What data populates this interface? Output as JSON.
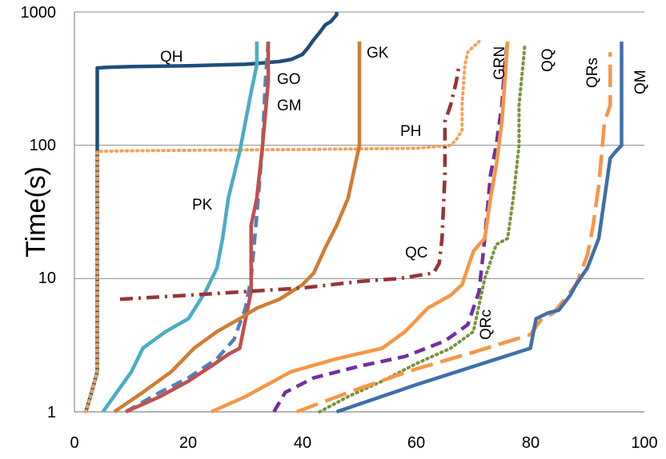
{
  "chart_data": {
    "type": "line",
    "title": "",
    "xlabel": "",
    "ylabel": "Time(s)",
    "xlim": [
      0,
      100
    ],
    "ylim": [
      1,
      1000
    ],
    "yscale": "log",
    "grid": "horizontal",
    "x_ticks": [
      "0",
      "20",
      "40",
      "60",
      "80",
      "100"
    ],
    "y_ticks": [
      "1",
      "10",
      "100",
      "1000"
    ],
    "series": [
      {
        "name": "QH",
        "color": "#1f4e79",
        "style": "solid",
        "x": [
          2,
          3,
          4,
          4,
          4,
          6,
          10,
          20,
          30,
          33,
          36,
          38,
          40,
          41,
          42,
          43,
          44,
          45,
          46,
          46
        ],
        "y": [
          1,
          1.4,
          2,
          100,
          380,
          385,
          390,
          395,
          405,
          415,
          425,
          440,
          480,
          540,
          620,
          700,
          800,
          850,
          950,
          1000
        ]
      },
      {
        "name": "PH",
        "color": "#f4a259",
        "style": "dotted",
        "x": [
          2,
          3,
          4,
          4,
          4,
          10,
          40,
          60,
          66,
          67,
          68,
          68,
          68.5,
          69,
          70,
          71
        ],
        "y": [
          1,
          1.4,
          2,
          8,
          90,
          91,
          93,
          95,
          100,
          110,
          130,
          200,
          400,
          500,
          550,
          600
        ]
      },
      {
        "name": "PK",
        "color": "#4bacc6",
        "style": "solid",
        "x": [
          5,
          10,
          12,
          16,
          20,
          23,
          25,
          26,
          27,
          28,
          29,
          30,
          31,
          32,
          32
        ],
        "y": [
          1,
          2,
          3,
          4,
          5,
          8,
          12,
          20,
          40,
          60,
          90,
          150,
          250,
          400,
          600
        ]
      },
      {
        "name": "GM",
        "color": "#4f81bd",
        "style": "dashed",
        "x": [
          9,
          15,
          20,
          25,
          28,
          30,
          31,
          32,
          33,
          33.5,
          34
        ],
        "y": [
          1,
          1.4,
          1.8,
          2.5,
          3.5,
          6,
          10,
          30,
          100,
          300,
          600
        ]
      },
      {
        "name": "GO",
        "color": "#c0504d",
        "style": "solid",
        "x": [
          9,
          15,
          20,
          24,
          27,
          29,
          31,
          31,
          32,
          33,
          34,
          34
        ],
        "y": [
          1,
          1.3,
          1.7,
          2.2,
          2.7,
          3,
          8,
          25,
          40,
          100,
          300,
          600
        ]
      },
      {
        "name": "GK",
        "color": "#d07c34",
        "style": "solid",
        "x": [
          7,
          12,
          17,
          21,
          25,
          29,
          32,
          36,
          40,
          42,
          44,
          46,
          48,
          50,
          50
        ],
        "y": [
          1,
          1.4,
          2,
          3,
          4,
          5,
          6,
          7,
          9,
          11,
          17,
          25,
          40,
          100,
          600
        ]
      },
      {
        "name": "QC",
        "color": "#993333",
        "style": "dashdot",
        "x": [
          8,
          20,
          40,
          50,
          57,
          60,
          63,
          64,
          64.5,
          65,
          65,
          66,
          67,
          67.5
        ],
        "y": [
          7,
          7.5,
          8.5,
          9.5,
          10,
          10.5,
          11,
          13,
          20,
          60,
          150,
          200,
          300,
          400
        ]
      },
      {
        "name": "GRN",
        "color": "#7030a0",
        "style": "dashed",
        "x": [
          35,
          37,
          42,
          50,
          58,
          65,
          69,
          71,
          72,
          73,
          74,
          75,
          75.5,
          76
        ],
        "y": [
          1,
          1.4,
          1.8,
          2.2,
          2.6,
          3.4,
          4.5,
          8,
          20,
          60,
          100,
          200,
          400,
          600
        ]
      },
      {
        "name": "QQ",
        "color": "#77933c",
        "style": "dotted",
        "x": [
          43,
          48,
          54,
          60,
          66,
          70,
          72,
          74,
          76,
          77,
          78,
          78,
          79
        ],
        "y": [
          1,
          1.3,
          1.7,
          2.3,
          3,
          4,
          10,
          18,
          20,
          40,
          100,
          200,
          550
        ]
      },
      {
        "name": "QRc",
        "color": "#f79646",
        "style": "solid",
        "x": [
          24,
          30,
          38,
          46,
          54,
          58,
          62,
          66,
          68,
          69,
          70,
          71,
          72,
          73,
          74,
          75,
          75.5,
          76
        ],
        "y": [
          1,
          1.3,
          2,
          2.5,
          3,
          4,
          6,
          7.5,
          9,
          12,
          16,
          18,
          20,
          40,
          70,
          150,
          300,
          600
        ]
      },
      {
        "name": "QRs",
        "color": "#f79646",
        "style": "longdash",
        "x": [
          39,
          50,
          60,
          70,
          80,
          82,
          84,
          86,
          88,
          90,
          91,
          92,
          93,
          94,
          94
        ],
        "y": [
          1,
          1.5,
          2.1,
          2.8,
          3.8,
          5,
          5.5,
          7,
          9,
          15,
          25,
          50,
          150,
          200,
          500
        ]
      },
      {
        "name": "QM",
        "color": "#3f6fa8",
        "style": "solid",
        "x": [
          46,
          60,
          80,
          81,
          83,
          85,
          87,
          88,
          90,
          92,
          93,
          94,
          95,
          96,
          96
        ],
        "y": [
          1,
          1.6,
          3,
          5,
          5.5,
          5.8,
          7.5,
          9,
          12,
          20,
          40,
          80,
          90,
          100,
          600
        ]
      }
    ],
    "series_labels": [
      "QH",
      "PH",
      "PK",
      "GM",
      "GO",
      "GK",
      "QC",
      "GRN",
      "QQ",
      "QRc",
      "QRs",
      "QM"
    ]
  }
}
